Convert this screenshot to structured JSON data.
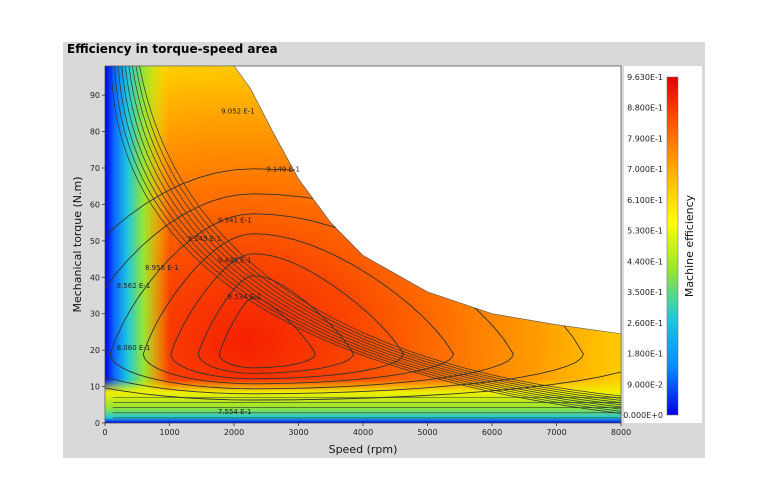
{
  "panel_title": "Efficiency in torque-speed area",
  "chart_data": {
    "type": "heatmap",
    "title": "Efficiency in torque-speed area",
    "xlabel": "Speed (rpm)",
    "ylabel": "Mechanical torque (N.m)",
    "xlim": [
      0,
      8000
    ],
    "ylim": [
      0,
      98
    ],
    "x_ticks": [
      0,
      1000,
      2000,
      3000,
      4000,
      5000,
      6000,
      7000,
      8000
    ],
    "y_ticks": [
      0,
      10,
      20,
      30,
      40,
      50,
      60,
      70,
      80,
      90
    ],
    "max_torque_envelope": {
      "speed": [
        0,
        2000,
        2250,
        2600,
        3000,
        3500,
        4000,
        5000,
        6000,
        7000,
        8000
      ],
      "torque": [
        98,
        98,
        92,
        80,
        67,
        55,
        46,
        36,
        30,
        27,
        24.5
      ]
    },
    "contour_labels": [
      {
        "text": "9.052 E-1",
        "x": 1800,
        "y": 85
      },
      {
        "text": "9.149 E-1",
        "x": 2500,
        "y": 69
      },
      {
        "text": "9.341 E-1",
        "x": 1750,
        "y": 55
      },
      {
        "text": "9.245 E-1",
        "x": 1280,
        "y": 50
      },
      {
        "text": "9.438 E-1",
        "x": 1750,
        "y": 44
      },
      {
        "text": "8.956 E-1",
        "x": 620,
        "y": 42
      },
      {
        "text": "9.534 E-1",
        "x": 1900,
        "y": 34
      },
      {
        "text": "8.562 E-1",
        "x": 180,
        "y": 37
      },
      {
        "text": "8.060 E-1",
        "x": 180,
        "y": 20
      },
      {
        "text": "7.554 E-1",
        "x": 1750,
        "y": 2.5
      }
    ],
    "colorbar": {
      "label": "Machine efficiency",
      "min": 0,
      "max": 0.963,
      "ticks": [
        "9.630E-1",
        "8.800E-1",
        "7.900E-1",
        "7.000E-1",
        "6.100E-1",
        "5.300E-1",
        "4.400E-1",
        "3.500E-1",
        "2.600E-1",
        "1.800E-1",
        "9.000E-2",
        "0.000E+0"
      ],
      "colors": [
        "#e60000",
        "#ff5a00",
        "#ffb400",
        "#ffff00",
        "#96e632",
        "#1ec8dc",
        "#0a8cff",
        "#0000e6"
      ]
    }
  }
}
